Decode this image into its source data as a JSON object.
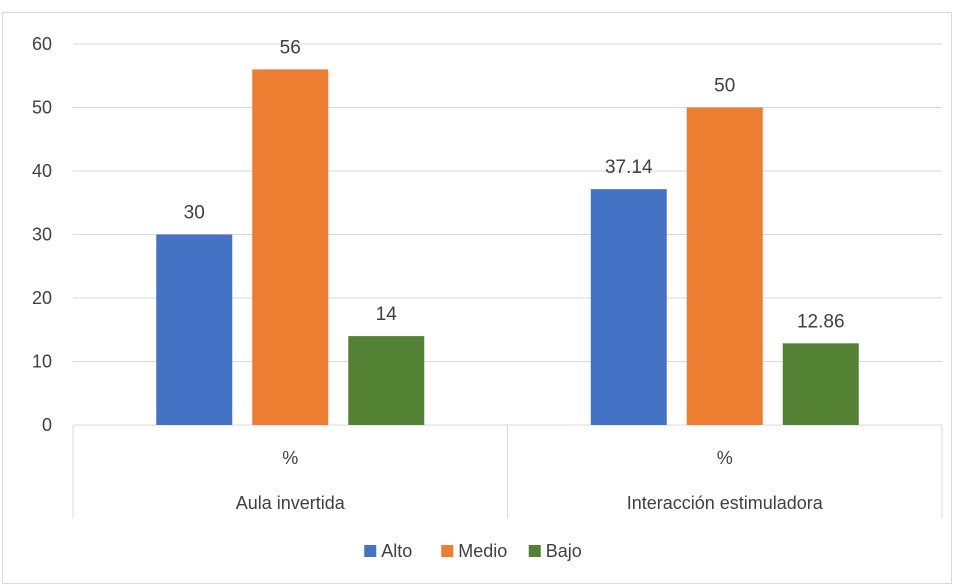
{
  "chart_data": {
    "type": "bar",
    "title": "",
    "xlabel": "",
    "ylabel": "",
    "ylim": [
      0,
      60
    ],
    "yticks": [
      0,
      10,
      20,
      30,
      40,
      50,
      60
    ],
    "grid": true,
    "legend_position": "bottom",
    "categories": [
      {
        "group": "Aula invertida",
        "sub": "%"
      },
      {
        "group": "Interacción estimuladora",
        "sub": "%"
      }
    ],
    "series": [
      {
        "name": "Alto",
        "color": "#4472c4",
        "values": [
          30,
          37.14
        ],
        "labels": [
          "30",
          "37.14"
        ]
      },
      {
        "name": "Medio",
        "color": "#ed7d31",
        "values": [
          56,
          50
        ],
        "labels": [
          "56",
          "50"
        ]
      },
      {
        "name": "Bajo",
        "color": "#548235",
        "values": [
          14,
          12.86
        ],
        "labels": [
          "14",
          "12.86"
        ]
      }
    ]
  }
}
